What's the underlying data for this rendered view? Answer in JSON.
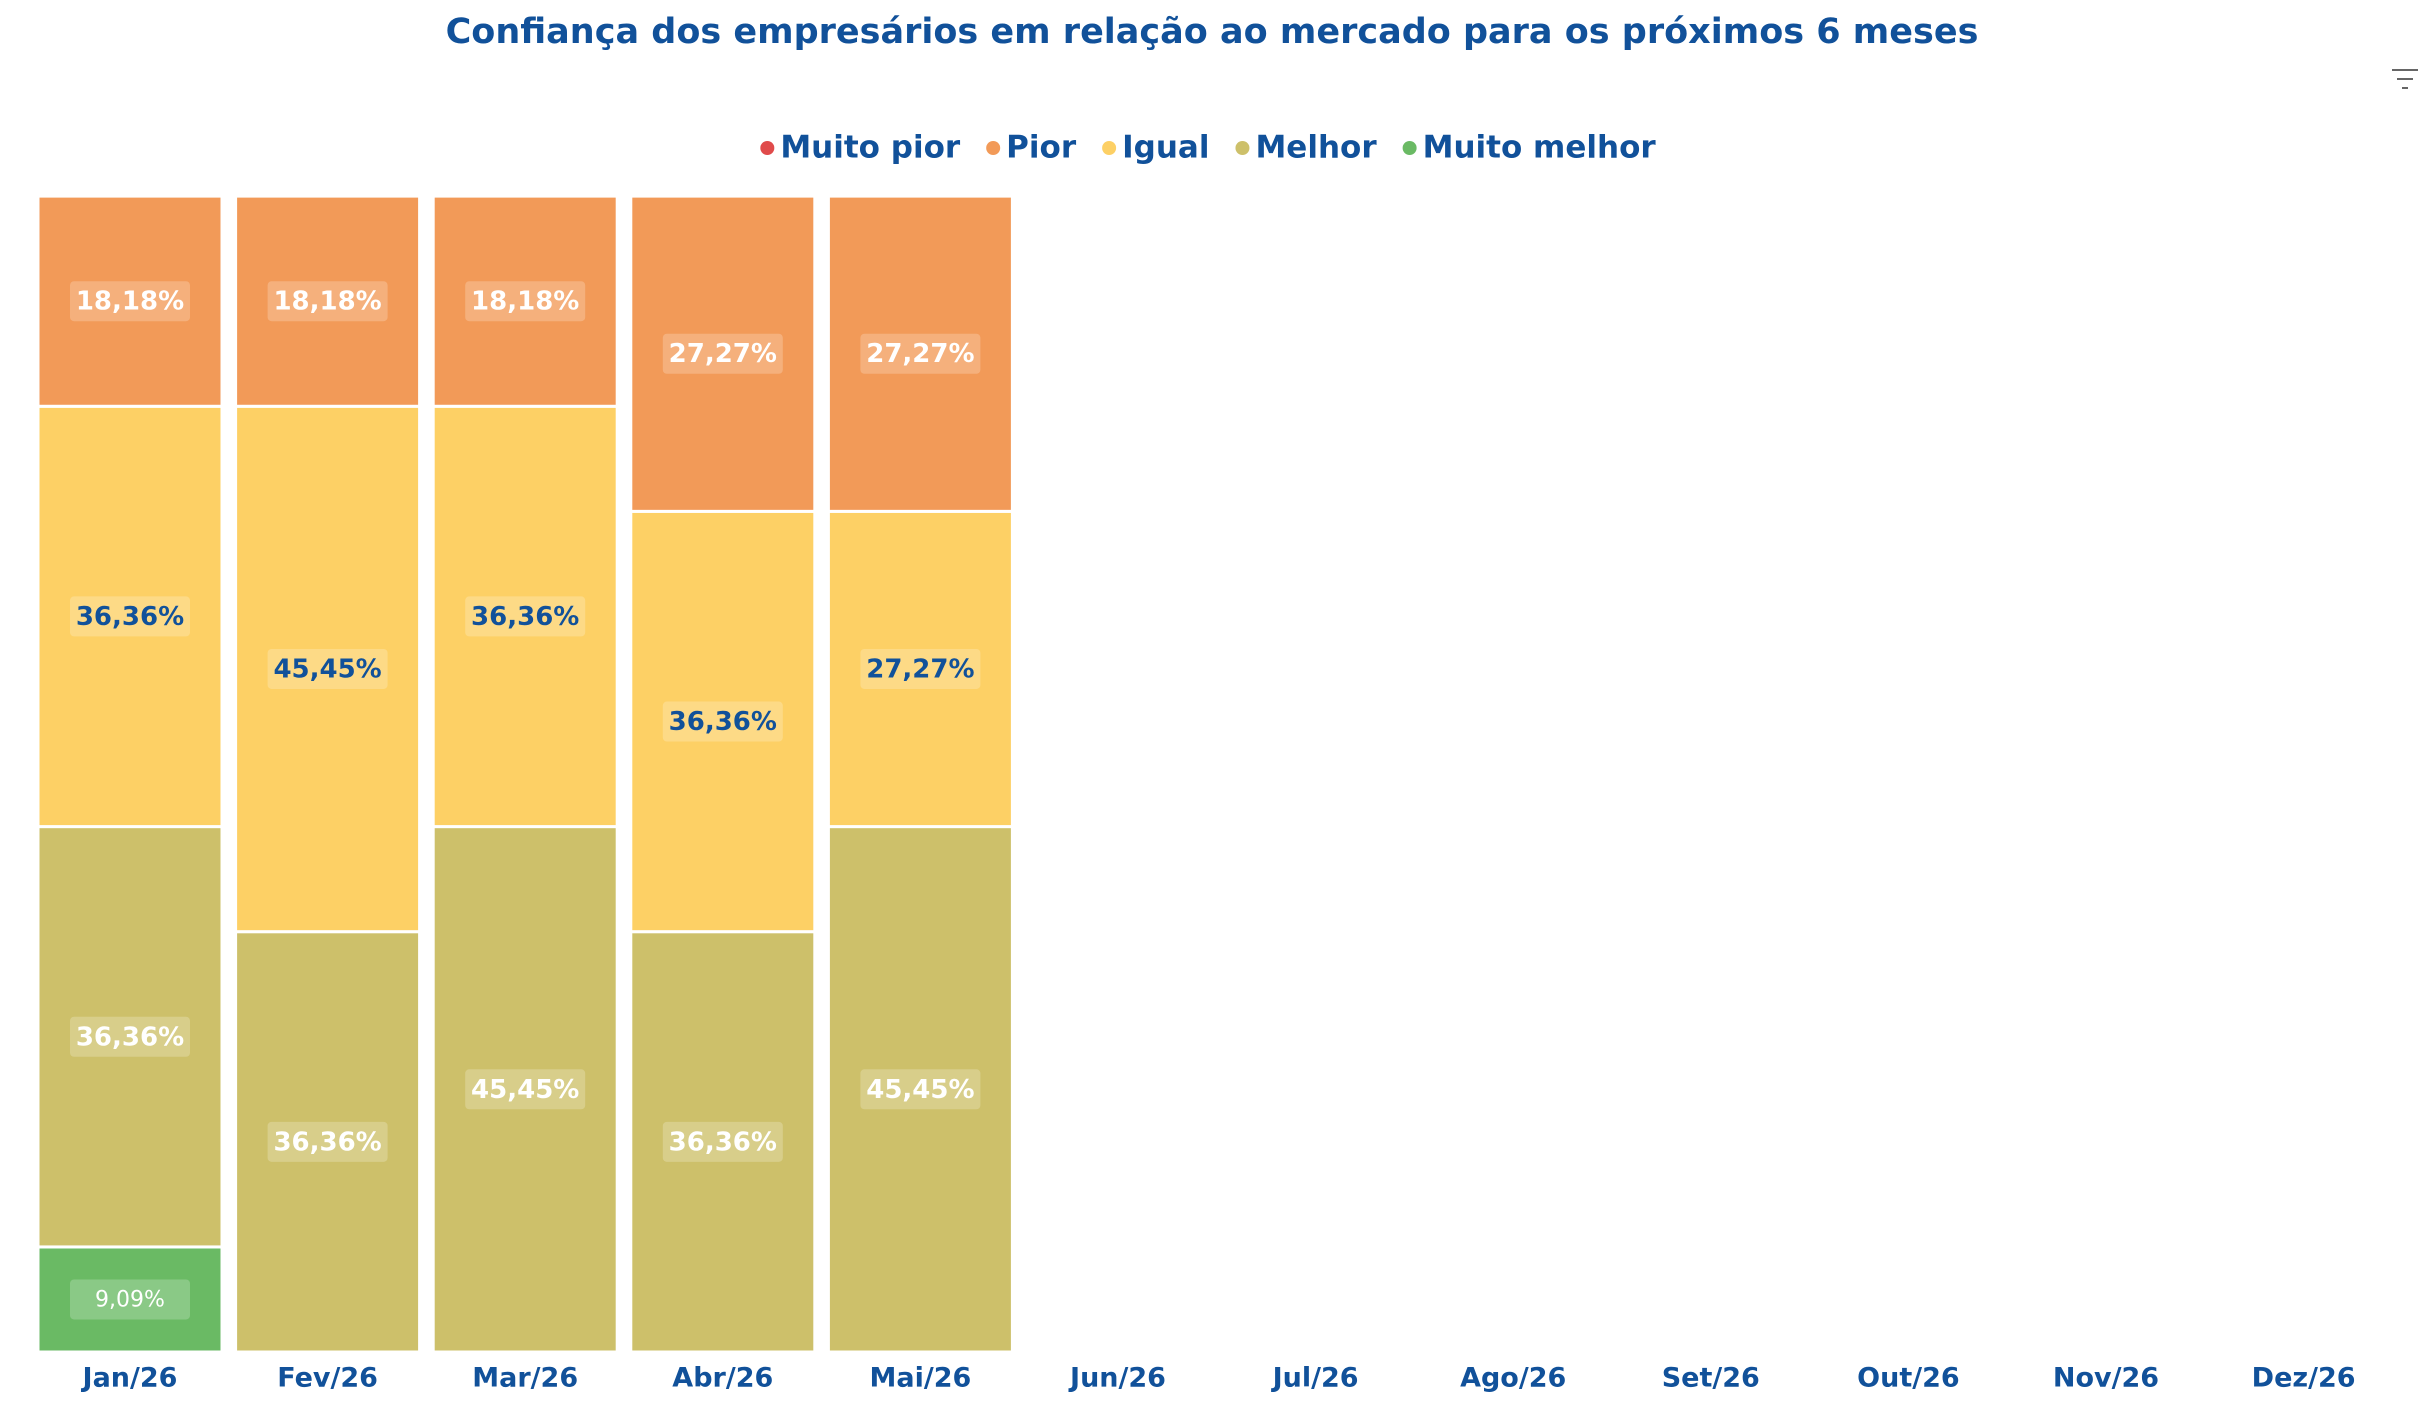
{
  "chart_data": {
    "type": "stacked_bar",
    "subtitle": "Confiança dos empresários em relação ao mercado para os próximos 6 meses",
    "categories": [
      "Jan/26",
      "Fev/26",
      "Mar/26",
      "Abr/26",
      "Mai/26",
      "Jun/26",
      "Jul/26",
      "Ago/26",
      "Set/26",
      "Out/26",
      "Nov/26",
      "Dez/26"
    ],
    "ylim": [
      0,
      100
    ],
    "series": [
      {
        "name": "Muito pior",
        "color": "#e04b4b",
        "label_color": "#ffffff",
        "values": [
          null,
          null,
          null,
          null,
          null,
          null,
          null,
          null,
          null,
          null,
          null,
          null
        ]
      },
      {
        "name": "Pior",
        "color": "#f29a58",
        "label_color": "#ffffff",
        "values": [
          18.18,
          18.18,
          18.18,
          27.27,
          27.27,
          null,
          null,
          null,
          null,
          null,
          null,
          null
        ],
        "value_labels": [
          "18,18%",
          "18,18%",
          "18,18%",
          "27,27%",
          "27,27%",
          null,
          null,
          null,
          null,
          null,
          null,
          null
        ]
      },
      {
        "name": "Igual",
        "color": "#fdd065",
        "label_color": "#11519a",
        "values": [
          36.36,
          45.45,
          36.36,
          36.36,
          27.27,
          null,
          null,
          null,
          null,
          null,
          null,
          null
        ],
        "value_labels": [
          "36,36%",
          "45,45%",
          "36,36%",
          "36,36%",
          "27,27%",
          null,
          null,
          null,
          null,
          null,
          null,
          null
        ]
      },
      {
        "name": "Melhor",
        "color": "#cdc06a",
        "label_color": "#ffffff",
        "values": [
          36.36,
          36.36,
          45.45,
          36.36,
          45.45,
          null,
          null,
          null,
          null,
          null,
          null,
          null
        ],
        "value_labels": [
          "36,36%",
          "36,36%",
          "45,45%",
          "36,36%",
          "45,45%",
          null,
          null,
          null,
          null,
          null,
          null,
          null
        ]
      },
      {
        "name": "Muito melhor",
        "color": "#6aba64",
        "label_color": "#ffffff",
        "values": [
          9.09,
          null,
          null,
          null,
          null,
          null,
          null,
          null,
          null,
          null,
          null,
          null
        ],
        "value_labels": [
          "9,09%",
          null,
          null,
          null,
          null,
          null,
          null,
          null,
          null,
          null,
          null,
          null
        ]
      }
    ]
  }
}
